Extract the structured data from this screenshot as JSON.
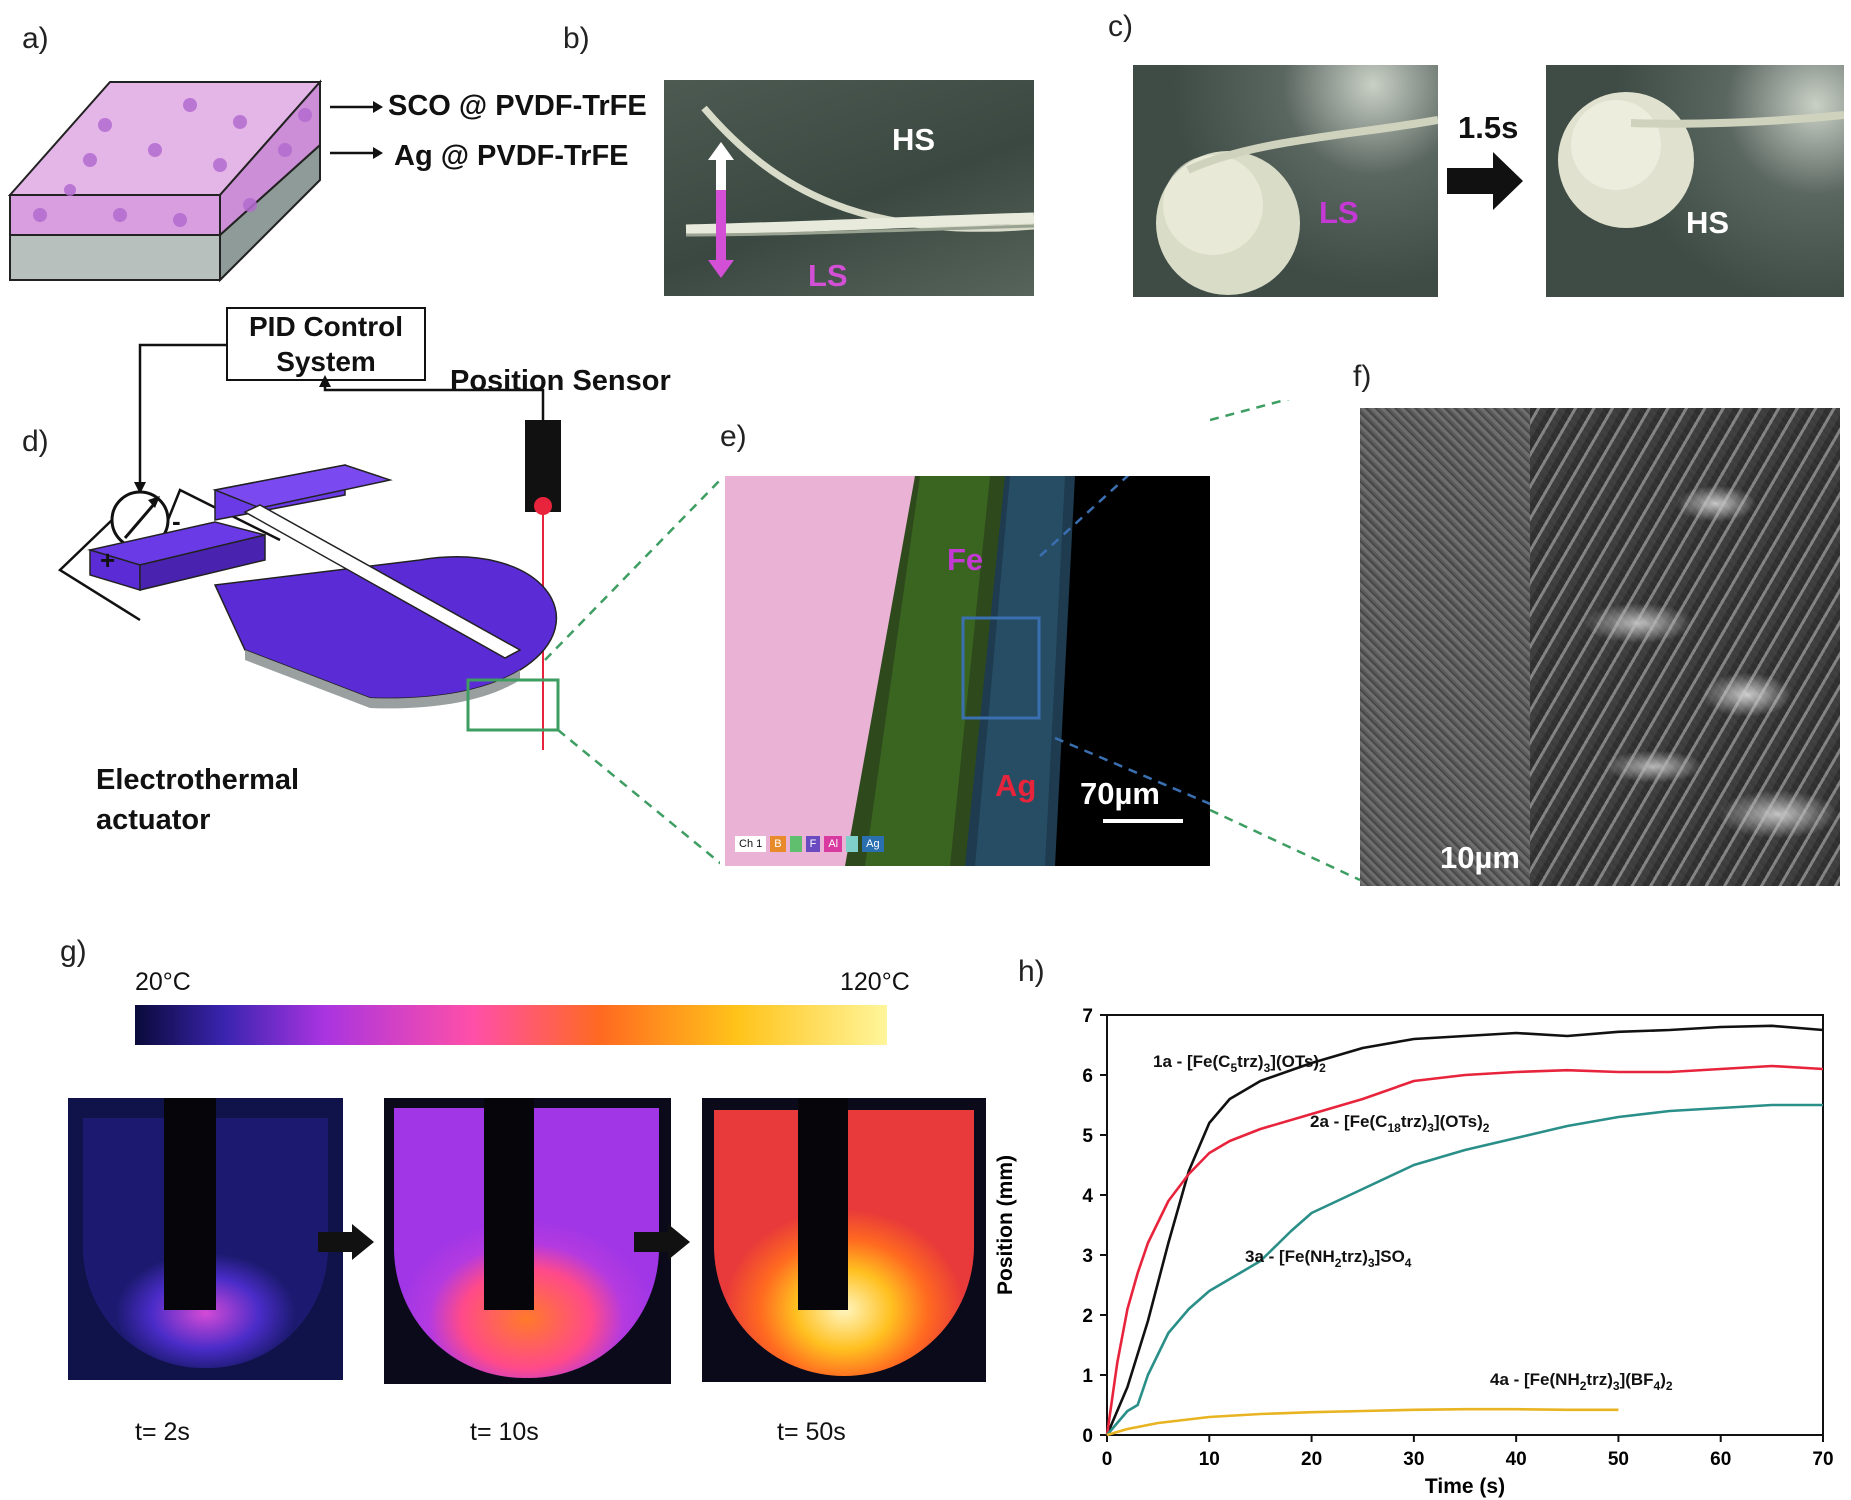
{
  "panels": {
    "a": {
      "label": "a)",
      "layer1": "SCO @ PVDF-TrFE",
      "layer2": "Ag @ PVDF-TrFE"
    },
    "b": {
      "label": "b)",
      "hs": "HS",
      "ls": "LS"
    },
    "c": {
      "label": "c)",
      "ls": "LS",
      "hs": "HS",
      "time": "1.5s"
    },
    "d": {
      "label": "d)",
      "pid": "PID Control System",
      "sensor": "Position Sensor",
      "actuator": "Electrothermal actuator",
      "plus": "+",
      "minus": "-"
    },
    "e": {
      "label": "e)",
      "fe": "Fe",
      "ag": "Ag",
      "scale": "70µm",
      "legend": [
        "Ch 1",
        "B",
        "",
        "F",
        "Al",
        "",
        "Ag"
      ]
    },
    "f": {
      "label": "f)",
      "scale": "10µm"
    },
    "g": {
      "label": "g)",
      "tmin": "20°C",
      "tmax": "120°C",
      "times": [
        "t= 2s",
        "t= 10s",
        "t= 50s"
      ]
    },
    "h": {
      "label": "h)"
    }
  },
  "colors": {
    "black_series": "#111111",
    "red_series": "#e8243c",
    "teal_series": "#2a8f88",
    "yellow_series": "#e8b422",
    "frame_purple": "#5b2bd6"
  },
  "chart_data": {
    "type": "line",
    "title": "",
    "xlabel": "Time (s)",
    "ylabel": "Position (mm)",
    "xlim": [
      0,
      70
    ],
    "ylim": [
      0,
      7
    ],
    "xticks": [
      0,
      10,
      20,
      30,
      40,
      50,
      60,
      70
    ],
    "yticks": [
      0,
      1,
      2,
      3,
      4,
      5,
      6,
      7
    ],
    "series": [
      {
        "name": "1a - [Fe(C5trz)3](OTs)2",
        "label_main": "1a - [Fe(C",
        "label_parts": [
          "5",
          "trz)",
          "3",
          "](OTs)",
          "2"
        ],
        "color": "#111111",
        "x": [
          0,
          2,
          4,
          6,
          8,
          10,
          12,
          15,
          20,
          25,
          30,
          35,
          40,
          45,
          50,
          55,
          60,
          65,
          70
        ],
        "y": [
          0,
          0.8,
          1.9,
          3.2,
          4.4,
          5.2,
          5.6,
          5.9,
          6.2,
          6.45,
          6.6,
          6.65,
          6.7,
          6.65,
          6.72,
          6.75,
          6.8,
          6.82,
          6.75
        ]
      },
      {
        "name": "2a - [Fe(C18trz)3](OTs)2",
        "label_main": "2a - [Fe(C",
        "label_parts": [
          "18",
          "trz)",
          "3",
          "](OTs)",
          "2"
        ],
        "color": "#e8243c",
        "x": [
          0,
          1,
          2,
          3,
          4,
          6,
          8,
          10,
          12,
          15,
          20,
          25,
          30,
          35,
          40,
          45,
          50,
          55,
          60,
          65,
          70
        ],
        "y": [
          0,
          1.2,
          2.1,
          2.7,
          3.2,
          3.9,
          4.35,
          4.7,
          4.9,
          5.1,
          5.35,
          5.6,
          5.9,
          6.0,
          6.05,
          6.08,
          6.05,
          6.05,
          6.1,
          6.15,
          6.1
        ]
      },
      {
        "name": "3a - [Fe(NH2trz)3]SO4",
        "label_main": "3a - [Fe(NH",
        "label_parts": [
          "2",
          "trz)",
          "3",
          "]SO",
          "4"
        ],
        "color": "#2a8f88",
        "x": [
          0,
          1,
          2,
          3,
          4,
          6,
          8,
          10,
          12,
          15,
          18,
          20,
          25,
          30,
          35,
          40,
          45,
          50,
          55,
          60,
          65,
          70
        ],
        "y": [
          0,
          0.2,
          0.4,
          0.5,
          1.0,
          1.7,
          2.1,
          2.4,
          2.6,
          2.9,
          3.4,
          3.7,
          4.1,
          4.5,
          4.75,
          4.95,
          5.15,
          5.3,
          5.4,
          5.45,
          5.5,
          5.5
        ]
      },
      {
        "name": "4a - [Fe(NH2trz)3](BF4)2",
        "label_main": "4a - [Fe(NH",
        "label_parts": [
          "2",
          "trz)",
          "3",
          "](BF",
          "4",
          ")",
          "2"
        ],
        "color": "#e8b422",
        "x": [
          0,
          2,
          5,
          10,
          15,
          20,
          25,
          30,
          35,
          40,
          45,
          50
        ],
        "y": [
          0,
          0.1,
          0.2,
          0.3,
          0.35,
          0.38,
          0.4,
          0.42,
          0.43,
          0.43,
          0.42,
          0.42
        ]
      }
    ]
  }
}
